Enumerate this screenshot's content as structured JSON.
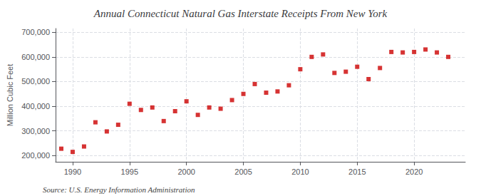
{
  "chart_data": {
    "type": "scatter",
    "title": "Annual Connecticut Natural Gas Interstate Receipts From New York",
    "ylabel": "Million Cubic Feet",
    "annotations": [
      "Source: U.S. Energy Information Administration"
    ],
    "x": [
      1989,
      1990,
      1991,
      1992,
      1993,
      1994,
      1995,
      1996,
      1997,
      1998,
      1999,
      2000,
      2001,
      2002,
      2003,
      2004,
      2005,
      2006,
      2007,
      2008,
      2009,
      2010,
      2011,
      2012,
      2013,
      2014,
      2015,
      2016,
      2017,
      2018,
      2019,
      2020,
      2021,
      2022,
      2023
    ],
    "values": [
      228000,
      215000,
      237000,
      335000,
      298000,
      325000,
      410000,
      385000,
      395000,
      340000,
      380000,
      420000,
      365000,
      395000,
      390000,
      425000,
      450000,
      490000,
      455000,
      460000,
      485000,
      550000,
      600000,
      610000,
      535000,
      540000,
      560000,
      510000,
      555000,
      620000,
      618000,
      620000,
      630000,
      618000,
      600000
    ],
    "color": "#cc0000",
    "marker": "square",
    "xlim": [
      1988.5,
      2024.5
    ],
    "xticks": [
      1990,
      1995,
      2000,
      2005,
      2010,
      2015,
      2020
    ],
    "ylim": [
      175000,
      715000
    ],
    "yticks": [
      {
        "value": 200000,
        "label": "200,000"
      },
      {
        "value": 300000,
        "label": "300,000"
      },
      {
        "value": 400000,
        "label": "400,000"
      },
      {
        "value": 500000,
        "label": "500,000"
      },
      {
        "value": 600000,
        "label": "600,000"
      },
      {
        "value": 700000,
        "label": "700,000"
      }
    ],
    "grid": true
  }
}
